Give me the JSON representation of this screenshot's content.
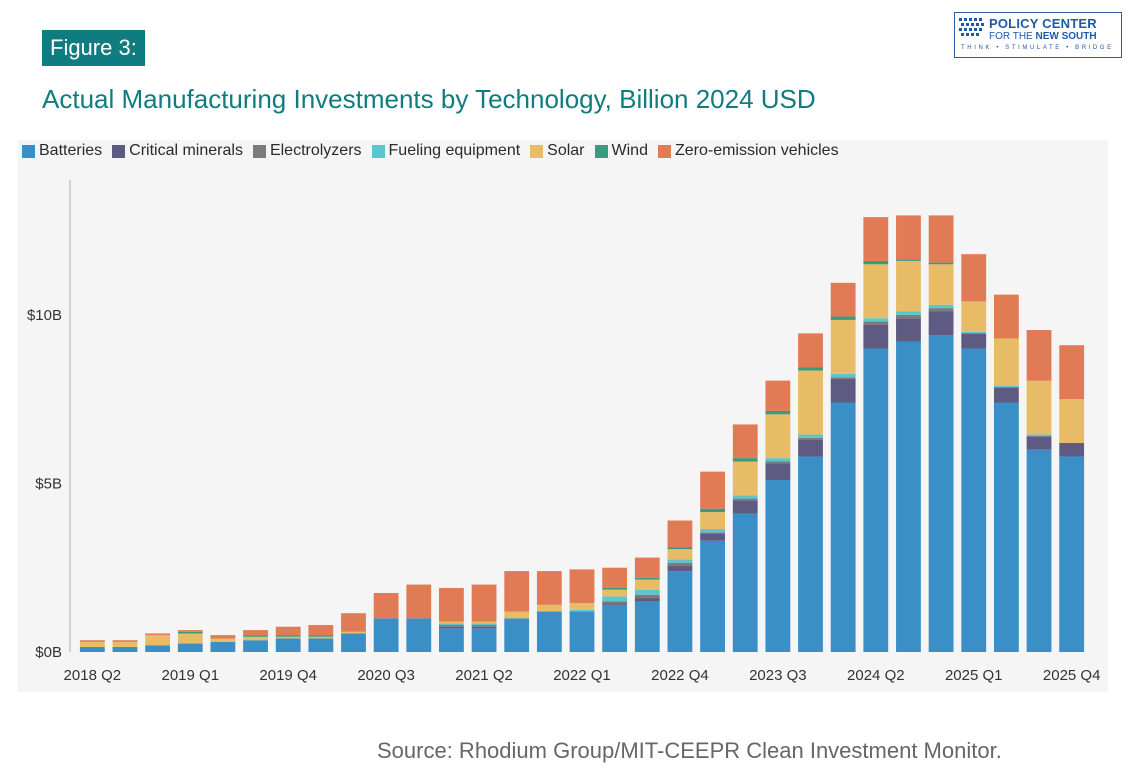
{
  "figure_label": "Figure 3:",
  "title": "Actual Manufacturing Investments by Technology, Billion 2024 USD",
  "logo": {
    "line1": "POLICY CENTER",
    "line2_prefix": "FOR THE ",
    "line2_bold": "NEW SOUTH",
    "tagline": "THINK • STIMULATE • BRIDGE"
  },
  "source": "Source: Rhodium Group/MIT-CEEPR Clean Investment Monitor.",
  "colors": {
    "title": "#0f7c80",
    "figure_label_bg": "#0f7c80",
    "panel_bg": "#f5f5f5"
  },
  "chart_data": {
    "type": "bar",
    "stacked": true,
    "x": [
      "2018 Q2",
      "2018 Q3",
      "2018 Q4",
      "2019 Q1",
      "2019 Q2",
      "2019 Q3",
      "2019 Q4",
      "2020 Q1",
      "2020 Q2",
      "2020 Q3",
      "2020 Q4",
      "2021 Q1",
      "2021 Q2",
      "2021 Q3",
      "2021 Q4",
      "2022 Q1",
      "2022 Q2",
      "2022 Q3",
      "2022 Q4",
      "2023 Q1",
      "2023 Q2",
      "2023 Q3",
      "2023 Q4",
      "2024 Q1",
      "2024 Q2",
      "2024 Q3",
      "2024 Q4",
      "2025 Q1",
      "2025 Q2",
      "2025 Q3",
      "2025 Q4"
    ],
    "tick_labels": [
      "2018 Q2",
      "2019 Q1",
      "2019 Q4",
      "2020 Q3",
      "2021 Q2",
      "2022 Q1",
      "2022 Q4",
      "2023 Q3",
      "2024 Q2",
      "2025 Q1",
      "2025 Q4"
    ],
    "tick_indices": [
      0,
      3,
      6,
      9,
      12,
      15,
      18,
      21,
      24,
      27,
      30
    ],
    "y_ticks": [
      0,
      5,
      10
    ],
    "y_tick_labels": [
      "$0B",
      "$5B",
      "$10B"
    ],
    "ylim": [
      0,
      14
    ],
    "grid": false,
    "legend_position": "top-left",
    "series": [
      {
        "name": "Batteries",
        "color": "#3a8fc6",
        "values": [
          0.15,
          0.15,
          0.2,
          0.25,
          0.3,
          0.35,
          0.4,
          0.4,
          0.55,
          1.0,
          1.0,
          0.7,
          0.7,
          1.0,
          1.2,
          1.2,
          1.4,
          1.5,
          2.4,
          3.3,
          4.1,
          5.1,
          5.8,
          7.4,
          9.0,
          9.2,
          9.4,
          9.0,
          7.4,
          6.0,
          5.8
        ]
      },
      {
        "name": "Critical minerals",
        "color": "#5e5a82",
        "values": [
          0,
          0,
          0,
          0,
          0,
          0,
          0,
          0,
          0,
          0,
          0,
          0.05,
          0.05,
          0,
          0,
          0,
          0.05,
          0.1,
          0.15,
          0.2,
          0.4,
          0.5,
          0.5,
          0.7,
          0.7,
          0.7,
          0.7,
          0.45,
          0.45,
          0.4,
          0.4
        ]
      },
      {
        "name": "Electrolyzers",
        "color": "#7b7b7b",
        "values": [
          0,
          0,
          0,
          0,
          0,
          0,
          0,
          0,
          0,
          0,
          0,
          0.05,
          0.05,
          0,
          0,
          0,
          0.05,
          0.1,
          0.1,
          0.05,
          0.05,
          0.05,
          0.05,
          0.05,
          0.1,
          0.1,
          0.1,
          0,
          0,
          0,
          0
        ]
      },
      {
        "name": "Fueling equipment",
        "color": "#5cc6cf",
        "values": [
          0,
          0,
          0,
          0,
          0,
          0,
          0,
          0,
          0,
          0,
          0,
          0.05,
          0.05,
          0,
          0,
          0.05,
          0.15,
          0.15,
          0.1,
          0.1,
          0.1,
          0.1,
          0.1,
          0.1,
          0.1,
          0.1,
          0.1,
          0.05,
          0.05,
          0.05,
          0
        ]
      },
      {
        "name": "Solar",
        "color": "#e8bb66",
        "values": [
          0.15,
          0.15,
          0.3,
          0.3,
          0.1,
          0.1,
          0.05,
          0.05,
          0.05,
          0,
          0,
          0.05,
          0.05,
          0.2,
          0.2,
          0.2,
          0.2,
          0.3,
          0.3,
          0.5,
          1.0,
          1.3,
          1.9,
          1.6,
          1.6,
          1.5,
          1.2,
          0.9,
          1.4,
          1.6,
          1.3
        ]
      },
      {
        "name": "Wind",
        "color": "#3a9a7f",
        "values": [
          0,
          0,
          0,
          0.05,
          0,
          0.05,
          0.05,
          0.05,
          0,
          0,
          0,
          0,
          0,
          0,
          0,
          0,
          0.05,
          0.05,
          0.05,
          0.1,
          0.1,
          0.1,
          0.1,
          0.1,
          0.1,
          0.05,
          0.05,
          0,
          0,
          0,
          0
        ]
      },
      {
        "name": "Zero-emission vehicles",
        "color": "#e07b56",
        "values": [
          0.05,
          0.05,
          0.05,
          0.05,
          0.1,
          0.15,
          0.25,
          0.3,
          0.55,
          0.75,
          1.0,
          1.0,
          1.1,
          1.2,
          1.0,
          1.0,
          0.6,
          0.6,
          0.8,
          1.1,
          1.0,
          0.9,
          1.0,
          1.0,
          1.3,
          1.3,
          1.4,
          1.4,
          1.3,
          1.5,
          1.6
        ]
      }
    ]
  }
}
